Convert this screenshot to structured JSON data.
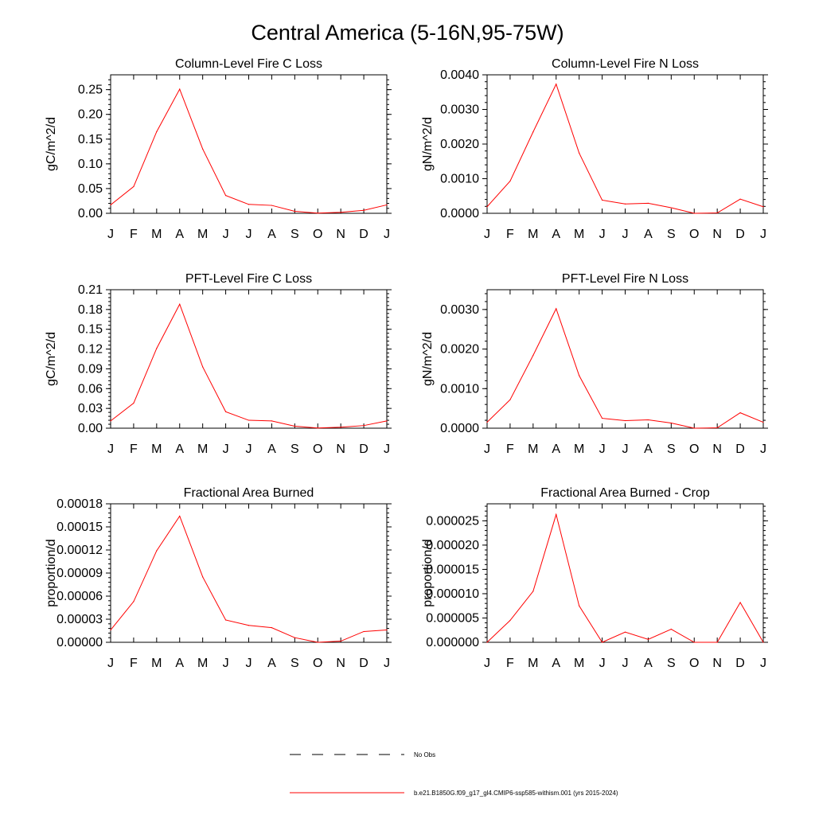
{
  "figure_title": "Central America (5-16N,95-75W)",
  "legend": {
    "obs_label": "No Obs",
    "model_label": "b.e21.B1850G.f09_g17_gl4.CMIP6-ssp585-withism.001 (yrs 2015-2024)",
    "model_color": "#ff0000"
  },
  "chart_data": [
    {
      "type": "line",
      "title": "Column-Level Fire C Loss",
      "xlabel": "",
      "ylabel": "gC/m^2/d",
      "categories": [
        "J",
        "F",
        "M",
        "A",
        "M",
        "J",
        "J",
        "A",
        "S",
        "O",
        "N",
        "D",
        "J"
      ],
      "ylim": [
        0,
        0.28
      ],
      "yticks": [
        "0.00",
        "0.05",
        "0.10",
        "0.15",
        "0.20",
        "0.25"
      ],
      "ytick_values": [
        0,
        0.05,
        0.1,
        0.15,
        0.2,
        0.25
      ],
      "series": [
        {
          "color": "#ff0000",
          "values": [
            0.017,
            0.054,
            0.165,
            0.251,
            0.13,
            0.036,
            0.018,
            0.016,
            0.004,
            0.0005,
            0.002,
            0.006,
            0.017
          ]
        }
      ]
    },
    {
      "type": "line",
      "title": "Column-Level Fire N Loss",
      "xlabel": "",
      "ylabel": "gN/m^2/d",
      "categories": [
        "J",
        "F",
        "M",
        "A",
        "M",
        "J",
        "J",
        "A",
        "S",
        "O",
        "N",
        "D",
        "J"
      ],
      "ylim": [
        0,
        0.004
      ],
      "yticks": [
        "0.0000",
        "0.0010",
        "0.0020",
        "0.0030",
        "0.0040"
      ],
      "ytick_values": [
        0,
        0.001,
        0.002,
        0.003,
        0.004
      ],
      "series": [
        {
          "color": "#ff0000",
          "values": [
            0.00019,
            0.00093,
            0.00235,
            0.00373,
            0.00174,
            0.00038,
            0.00027,
            0.00029,
            0.00016,
            0.0,
            1e-05,
            0.00041,
            0.00019
          ]
        }
      ]
    },
    {
      "type": "line",
      "title": "PFT-Level Fire C Loss",
      "xlabel": "",
      "ylabel": "gC/m^2/d",
      "categories": [
        "J",
        "F",
        "M",
        "A",
        "M",
        "J",
        "J",
        "A",
        "S",
        "O",
        "N",
        "D",
        "J"
      ],
      "ylim": [
        0,
        0.21
      ],
      "yticks": [
        "0.00",
        "0.03",
        "0.06",
        "0.09",
        "0.12",
        "0.15",
        "0.18",
        "0.21"
      ],
      "ytick_values": [
        0,
        0.03,
        0.06,
        0.09,
        0.12,
        0.15,
        0.18,
        0.21
      ],
      "series": [
        {
          "color": "#ff0000",
          "values": [
            0.011,
            0.038,
            0.121,
            0.188,
            0.093,
            0.025,
            0.012,
            0.011,
            0.003,
            0.0003,
            0.0015,
            0.004,
            0.011
          ]
        }
      ]
    },
    {
      "type": "line",
      "title": "PFT-Level Fire N Loss",
      "xlabel": "",
      "ylabel": "gN/m^2/d",
      "categories": [
        "J",
        "F",
        "M",
        "A",
        "M",
        "J",
        "J",
        "A",
        "S",
        "O",
        "N",
        "D",
        "J"
      ],
      "ylim": [
        0,
        0.0035
      ],
      "yticks": [
        "0.0000",
        "0.0010",
        "0.0020",
        "0.0030"
      ],
      "ytick_values": [
        0,
        0.001,
        0.002,
        0.003
      ],
      "series": [
        {
          "color": "#ff0000",
          "values": [
            0.00015,
            0.00072,
            0.00184,
            0.00302,
            0.00133,
            0.00025,
            0.00019,
            0.00021,
            0.00013,
            0.0,
            1e-05,
            0.00039,
            0.00015
          ]
        }
      ]
    },
    {
      "type": "line",
      "title": "Fractional Area Burned",
      "xlabel": "",
      "ylabel": "proportion/d",
      "categories": [
        "J",
        "F",
        "M",
        "A",
        "M",
        "J",
        "J",
        "A",
        "S",
        "O",
        "N",
        "D",
        "J"
      ],
      "ylim": [
        0,
        0.00018
      ],
      "yticks": [
        "0.00000",
        "0.00003",
        "0.00006",
        "0.00009",
        "0.00012",
        "0.00015",
        "0.00018"
      ],
      "ytick_values": [
        0,
        3e-05,
        6e-05,
        9e-05,
        0.00012,
        0.00015,
        0.00018
      ],
      "series": [
        {
          "color": "#ff0000",
          "values": [
            1.6e-05,
            5.3e-05,
            0.000119,
            0.000164,
            8.5e-05,
            2.9e-05,
            2.2e-05,
            1.9e-05,
            6e-06,
            0.0,
            1.5e-06,
            1.4e-05,
            1.6e-05
          ]
        }
      ]
    },
    {
      "type": "line",
      "title": "Fractional Area Burned - Crop",
      "xlabel": "",
      "ylabel": "proportion/d",
      "categories": [
        "J",
        "F",
        "M",
        "A",
        "M",
        "J",
        "J",
        "A",
        "S",
        "O",
        "N",
        "D",
        "J"
      ],
      "ylim": [
        0,
        2.85e-05
      ],
      "yticks": [
        "0.000000",
        "0.000005",
        "0.000010",
        "0.000015",
        "0.000020",
        "0.000025"
      ],
      "ytick_values": [
        0,
        5e-06,
        1e-05,
        1.5e-05,
        2e-05,
        2.5e-05
      ],
      "series": [
        {
          "color": "#ff0000",
          "values": [
            0.0,
            4.5e-06,
            1.05e-05,
            2.63e-05,
            7.5e-06,
            0.0,
            2.1e-06,
            6e-07,
            2.7e-06,
            0.0,
            0.0,
            8.2e-06,
            0.0
          ]
        }
      ]
    }
  ]
}
